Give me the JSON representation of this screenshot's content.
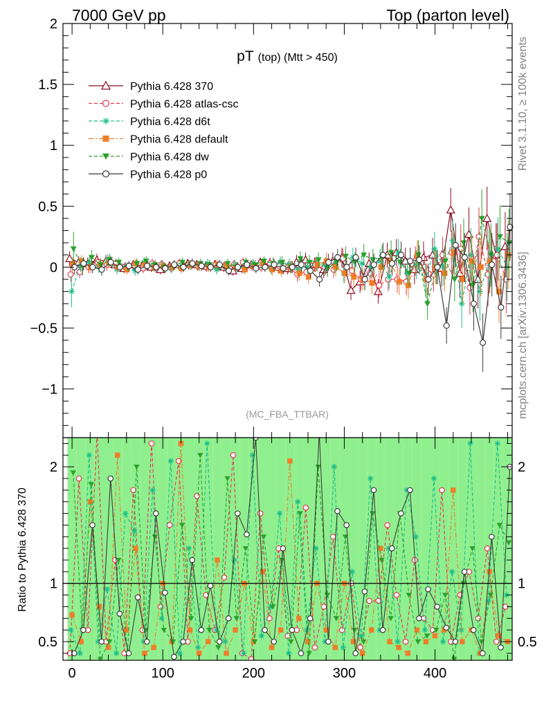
{
  "header": {
    "left": "7000 GeV pp",
    "right": "Top (parton level)"
  },
  "side_texts": {
    "rivet": "Rivet 3.1.10, ≥ 100k events",
    "mcplots": "mcplots.cern.ch [arXiv:1306.3436]"
  },
  "chart_data": [
    {
      "type": "line",
      "title": "pT (top) (Mtt > 450)",
      "title_main": "pT",
      "title_sub": "(top) (Mtt > 450)",
      "watermark": "(MC_FBA_TTBAR)",
      "xlabel": "",
      "ylabel": "",
      "xlim": [
        -10,
        485
      ],
      "ylim": [
        -1.4,
        2.0
      ],
      "y_ticks": [
        2,
        1.5,
        1,
        0.5,
        0,
        -0.5,
        -1
      ],
      "y_tick_labels": [
        "2",
        "1.5",
        "1",
        "0.5",
        "0",
        "−0.5",
        "−1"
      ],
      "legend_position": "top-left",
      "x": [
        0,
        10,
        20,
        30,
        40,
        50,
        60,
        70,
        80,
        90,
        100,
        110,
        120,
        130,
        140,
        150,
        160,
        170,
        180,
        190,
        200,
        210,
        220,
        230,
        240,
        250,
        260,
        270,
        280,
        290,
        300,
        310,
        320,
        330,
        340,
        350,
        360,
        370,
        380,
        390,
        400,
        410,
        420,
        430,
        440,
        450,
        460,
        470,
        480
      ],
      "series": [
        {
          "name": "Pythia 6.428 370",
          "color": "#8b0a1e",
          "marker": "triangle-open",
          "dash": "solid",
          "values": [
            0.07,
            0.04,
            0.03,
            0.06,
            0.05,
            0.02,
            -0.01,
            0.02,
            0.01,
            0.0,
            -0.02,
            0.01,
            0.02,
            0.03,
            0.02,
            0.01,
            0.02,
            0.0,
            -0.03,
            -0.01,
            0.02,
            0.04,
            0.02,
            0.0,
            -0.01,
            0.04,
            0.06,
            0.02,
            -0.02,
            0.05,
            0.08,
            -0.19,
            -0.12,
            0.03,
            -0.2,
            0.1,
            0.12,
            0.05,
            -0.02,
            0.08,
            0.1,
            -0.01,
            0.47,
            -0.05,
            0.27,
            -0.1,
            0.4,
            0.1,
            0.17
          ],
          "errors": [
            0.06,
            0.05,
            0.05,
            0.05,
            0.05,
            0.04,
            0.04,
            0.04,
            0.04,
            0.04,
            0.04,
            0.04,
            0.04,
            0.04,
            0.04,
            0.04,
            0.04,
            0.04,
            0.04,
            0.04,
            0.04,
            0.04,
            0.05,
            0.05,
            0.05,
            0.06,
            0.06,
            0.06,
            0.07,
            0.07,
            0.08,
            0.08,
            0.09,
            0.09,
            0.1,
            0.1,
            0.11,
            0.11,
            0.12,
            0.13,
            0.14,
            0.15,
            0.18,
            0.2,
            0.22,
            0.24,
            0.26,
            0.26,
            0.28
          ]
        },
        {
          "name": "Pythia 6.428 atlas-csc",
          "color": "#e8344a",
          "marker": "circle-open",
          "dash": "dashed",
          "values": [
            -0.06,
            -0.04,
            0.0,
            0.04,
            0.02,
            0.03,
            0.0,
            0.01,
            -0.01,
            0.03,
            0.02,
            0.0,
            0.03,
            0.02,
            0.01,
            0.0,
            0.02,
            0.01,
            0.02,
            0.04,
            0.01,
            0.0,
            0.03,
            0.01,
            0.0,
            -0.06,
            -0.04,
            0.02,
            0.0,
            -0.02,
            0.07,
            -0.03,
            -0.1,
            -0.05,
            -0.15,
            -0.1,
            -0.1,
            -0.12,
            0.05,
            0.0,
            -0.06,
            0.1,
            0.12,
            0.15,
            -0.17,
            0.25,
            -0.06,
            0.1,
            -0.1
          ],
          "errors": [
            0.06,
            0.05,
            0.05,
            0.05,
            0.05,
            0.04,
            0.04,
            0.04,
            0.04,
            0.04,
            0.04,
            0.04,
            0.04,
            0.04,
            0.04,
            0.04,
            0.04,
            0.04,
            0.04,
            0.04,
            0.04,
            0.04,
            0.05,
            0.05,
            0.05,
            0.06,
            0.06,
            0.06,
            0.07,
            0.07,
            0.08,
            0.08,
            0.09,
            0.09,
            0.1,
            0.1,
            0.11,
            0.11,
            0.12,
            0.13,
            0.14,
            0.15,
            0.18,
            0.2,
            0.22,
            0.24,
            0.26,
            0.26,
            0.28
          ]
        },
        {
          "name": "Pythia 6.428 d6t",
          "color": "#19bd8a",
          "marker": "asterisk",
          "dash": "dashed",
          "values": [
            -0.2,
            0.02,
            0.04,
            0.0,
            0.06,
            -0.02,
            0.0,
            -0.03,
            0.04,
            0.01,
            0.02,
            -0.01,
            0.0,
            0.02,
            0.01,
            0.03,
            -0.02,
            0.0,
            0.02,
            -0.01,
            0.03,
            0.02,
            -0.01,
            0.04,
            0.02,
            -0.02,
            0.0,
            0.03,
            0.01,
            0.02,
            -0.05,
            0.08,
            0.03,
            0.0,
            0.05,
            -0.08,
            0.12,
            -0.05,
            0.02,
            -0.1,
            0.15,
            0.0,
            0.22,
            -0.3,
            0.1,
            -0.2,
            0.05,
            0.15,
            0.0
          ],
          "errors": [
            0.13,
            0.06,
            0.06,
            0.05,
            0.05,
            0.04,
            0.04,
            0.04,
            0.04,
            0.04,
            0.04,
            0.04,
            0.04,
            0.04,
            0.04,
            0.04,
            0.04,
            0.04,
            0.04,
            0.04,
            0.04,
            0.04,
            0.05,
            0.05,
            0.05,
            0.06,
            0.06,
            0.06,
            0.07,
            0.07,
            0.08,
            0.08,
            0.09,
            0.09,
            0.1,
            0.1,
            0.11,
            0.11,
            0.12,
            0.13,
            0.14,
            0.15,
            0.18,
            0.2,
            0.22,
            0.24,
            0.26,
            0.26,
            0.28
          ]
        },
        {
          "name": "Pythia 6.428 default",
          "color": "#f07d28",
          "marker": "square",
          "dash": "dashdot",
          "values": [
            0.02,
            0.05,
            0.0,
            0.02,
            0.04,
            0.0,
            -0.02,
            0.03,
            0.02,
            0.0,
            0.01,
            0.0,
            -0.01,
            0.02,
            0.01,
            0.0,
            0.02,
            0.01,
            0.0,
            -0.02,
            0.01,
            0.03,
            -0.02,
            -0.03,
            0.0,
            -0.05,
            -0.08,
            0.02,
            0.05,
            0.0,
            -0.05,
            -0.08,
            -0.1,
            -0.13,
            0.0,
            0.05,
            -0.12,
            -0.15,
            0.1,
            -0.1,
            0.0,
            -0.05,
            0.12,
            -0.1,
            0.05,
            0.0,
            0.05,
            -0.2,
            0.1
          ],
          "errors": [
            0.06,
            0.05,
            0.05,
            0.05,
            0.05,
            0.04,
            0.04,
            0.04,
            0.04,
            0.04,
            0.04,
            0.04,
            0.04,
            0.04,
            0.04,
            0.04,
            0.04,
            0.04,
            0.04,
            0.04,
            0.04,
            0.04,
            0.05,
            0.05,
            0.05,
            0.06,
            0.06,
            0.06,
            0.07,
            0.07,
            0.08,
            0.08,
            0.09,
            0.09,
            0.1,
            0.1,
            0.11,
            0.11,
            0.12,
            0.13,
            0.14,
            0.15,
            0.18,
            0.2,
            0.22,
            0.24,
            0.26,
            0.26,
            0.28
          ]
        },
        {
          "name": "Pythia 6.428 dw",
          "color": "#2ca02c",
          "marker": "triangle-down",
          "dash": "dashed",
          "values": [
            0.15,
            0.0,
            0.08,
            0.02,
            0.06,
            0.04,
            0.0,
            0.03,
            0.05,
            0.02,
            0.0,
            0.01,
            0.04,
            0.02,
            0.03,
            0.02,
            0.01,
            0.03,
            0.0,
            0.04,
            0.02,
            0.05,
            0.03,
            0.04,
            0.0,
            0.07,
            0.04,
            0.06,
            -0.01,
            0.04,
            0.09,
            0.04,
            0.1,
            0.06,
            0.08,
            0.12,
            0.04,
            -0.05,
            0.1,
            -0.3,
            0.0,
            0.05,
            -0.1,
            0.2,
            -0.15,
            0.4,
            0.1,
            0.25,
            0.2
          ],
          "errors": [
            0.14,
            0.07,
            0.06,
            0.05,
            0.05,
            0.04,
            0.04,
            0.04,
            0.04,
            0.04,
            0.04,
            0.04,
            0.04,
            0.04,
            0.04,
            0.04,
            0.04,
            0.04,
            0.04,
            0.04,
            0.04,
            0.04,
            0.05,
            0.05,
            0.05,
            0.06,
            0.06,
            0.06,
            0.07,
            0.07,
            0.08,
            0.08,
            0.09,
            0.09,
            0.1,
            0.1,
            0.11,
            0.11,
            0.12,
            0.13,
            0.14,
            0.15,
            0.18,
            0.2,
            0.22,
            0.24,
            0.26,
            0.26,
            0.28
          ]
        },
        {
          "name": "Pythia 6.428 p0",
          "color": "#3a3a3a",
          "marker": "circle-open",
          "dash": "solid",
          "values": [
            0.0,
            0.03,
            0.0,
            -0.02,
            0.04,
            0.0,
            0.01,
            -0.02,
            0.01,
            0.0,
            -0.01,
            0.02,
            0.0,
            0.03,
            0.01,
            0.0,
            0.02,
            -0.03,
            0.0,
            0.02,
            -0.01,
            0.0,
            0.02,
            -0.01,
            0.0,
            0.02,
            -0.03,
            -0.1,
            0.04,
            0.08,
            0.0,
            0.08,
            -0.1,
            0.02,
            0.1,
            0.03,
            0.1,
            0.05,
            0.06,
            -0.1,
            0.0,
            -0.48,
            0.18,
            0.08,
            -0.3,
            -0.62,
            0.02,
            -0.33,
            0.33
          ],
          "errors": [
            0.06,
            0.05,
            0.05,
            0.05,
            0.05,
            0.04,
            0.04,
            0.04,
            0.04,
            0.04,
            0.04,
            0.04,
            0.04,
            0.04,
            0.04,
            0.04,
            0.04,
            0.04,
            0.04,
            0.04,
            0.04,
            0.04,
            0.05,
            0.05,
            0.05,
            0.06,
            0.06,
            0.06,
            0.07,
            0.07,
            0.08,
            0.08,
            0.09,
            0.09,
            0.1,
            0.1,
            0.11,
            0.11,
            0.12,
            0.13,
            0.14,
            0.15,
            0.18,
            0.2,
            0.22,
            0.24,
            0.26,
            0.26,
            0.28
          ]
        }
      ]
    },
    {
      "type": "line",
      "ylabel": "Ratio to Pythia 6.428 370",
      "xlim": [
        -10,
        485
      ],
      "ylim": [
        0.34,
        2.25
      ],
      "x_ticks": [
        0,
        100,
        200,
        300,
        400
      ],
      "x_tick_labels": [
        "0",
        "100",
        "200",
        "300",
        "400"
      ],
      "y_ticks": [
        2,
        1,
        0.5
      ],
      "y_tick_labels": [
        "2",
        "1",
        "0.5"
      ],
      "reference_line": 1,
      "band_colors": {
        "inner": "#8fef8f",
        "outer": "#ffff99"
      },
      "x": [
        0,
        10,
        20,
        30,
        40,
        50,
        60,
        70,
        80,
        90,
        100,
        110,
        120,
        130,
        140,
        150,
        160,
        170,
        180,
        190,
        200,
        210,
        220,
        230,
        240,
        250,
        260,
        270,
        280,
        290,
        300,
        310,
        320,
        330,
        340,
        350,
        360,
        370,
        380,
        390,
        400,
        410,
        420,
        430,
        440,
        450,
        460,
        470,
        480
      ],
      "series": [
        {
          "name": "Pythia 6.428 atlas-csc",
          "color": "#e8344a",
          "marker": "circle-open",
          "dash": "dashed",
          "values": [
            0.4,
            1.9,
            0.6,
            2.3,
            0.5,
            1.2,
            0.4,
            1.8,
            0.6,
            2.2,
            0.8,
            1.5,
            2.05,
            0.5,
            1.75,
            0.9,
            0.6,
            1.05,
            2.1,
            0.4,
            0.35,
            1.6,
            0.7,
            1.3,
            0.55,
            0.6,
            1.65,
            0.45,
            0.8,
            1.4,
            0.6,
            1.0,
            0.45,
            0.85,
            0.85,
            1.5,
            0.9,
            0.5,
            1.2,
            0.7,
            0.6,
            1.8,
            0.5,
            0.9,
            1.1,
            0.7,
            1.3,
            0.5,
            0.8
          ]
        },
        {
          "name": "Pythia 6.428 d6t",
          "color": "#19bd8a",
          "marker": "asterisk",
          "dash": "dashed",
          "values": [
            0.6,
            0.4,
            2.1,
            0.5,
            0.95,
            0.4,
            1.6,
            1.45,
            0.5,
            1.8,
            0.7,
            2.05,
            0.4,
            1.3,
            0.45,
            2.2,
            0.6,
            0.5,
            1.2,
            0.4,
            2.1,
            0.55,
            0.8,
            1.6,
            0.4,
            1.7,
            0.6,
            1.3,
            0.5,
            2.0,
            0.45,
            1.1,
            0.55,
            1.9,
            0.6,
            1.3,
            0.5,
            1.8,
            1.4,
            0.6,
            1.9,
            0.5,
            1.1,
            0.6,
            2.2,
            0.4,
            0.85,
            2.2,
            0.9
          ]
        },
        {
          "name": "Pythia 6.428 default",
          "color": "#f07d28",
          "marker": "square",
          "dash": "dashdot",
          "values": [
            0.73,
            0.5,
            1.7,
            0.8,
            0.45,
            2.1,
            0.6,
            1.3,
            0.4,
            0.45,
            1.0,
            0.5,
            2.2,
            0.6,
            0.4,
            0.5,
            1.2,
            0.4,
            0.6,
            1.0,
            0.5,
            1.1,
            0.45,
            0.6,
            2.05,
            0.7,
            0.5,
            1.0,
            0.6,
            0.45,
            1.0,
            0.5,
            0.4,
            0.6,
            1.3,
            0.5,
            0.45,
            0.4,
            0.6,
            0.5,
            0.55,
            0.6,
            1.8,
            0.5,
            0.6,
            0.4,
            1.1,
            0.55,
            0.5
          ]
        },
        {
          "name": "Pythia 6.428 dw",
          "color": "#2ca02c",
          "marker": "triangle-down",
          "dash": "dashed",
          "values": [
            1.95,
            0.6,
            1.85,
            0.35,
            0.5,
            1.2,
            0.4,
            2.0,
            0.6,
            1.4,
            0.6,
            0.5,
            1.5,
            0.7,
            2.1,
            0.6,
            0.45,
            1.9,
            0.7,
            1.3,
            0.5,
            1.4,
            0.8,
            1.2,
            0.5,
            1.6,
            0.4,
            2.0,
            0.9,
            0.7,
            1.4,
            0.6,
            0.5,
            1.6,
            1.2,
            0.7,
            1.6,
            0.9,
            0.5,
            0.55,
            0.6,
            0.9,
            0.35,
            1.0,
            1.3,
            0.5,
            0.9,
            1.5,
            1.35
          ]
        },
        {
          "name": "Pythia 6.428 p0",
          "color": "#3a3a3a",
          "marker": "circle-open",
          "dash": "solid",
          "values": [
            0.4,
            0.6,
            1.5,
            0.5,
            1.9,
            0.74,
            0.4,
            0.88,
            0.5,
            1.6,
            0.92,
            0.37,
            0.5,
            1.2,
            0.6,
            0.98,
            0.5,
            0.7,
            1.6,
            1.42,
            2.25,
            0.6,
            0.5,
            1.3,
            0.6,
            0.4,
            0.7,
            2.3,
            0.5,
            1.62,
            1.5,
            0.4,
            0.93,
            1.8,
            0.6,
            1.3,
            1.6,
            1.8,
            0.7,
            0.95,
            0.8,
            0.62,
            0.5,
            1.1,
            0.6,
            0.4,
            1.4,
            0.45,
            2.0
          ]
        }
      ]
    }
  ]
}
